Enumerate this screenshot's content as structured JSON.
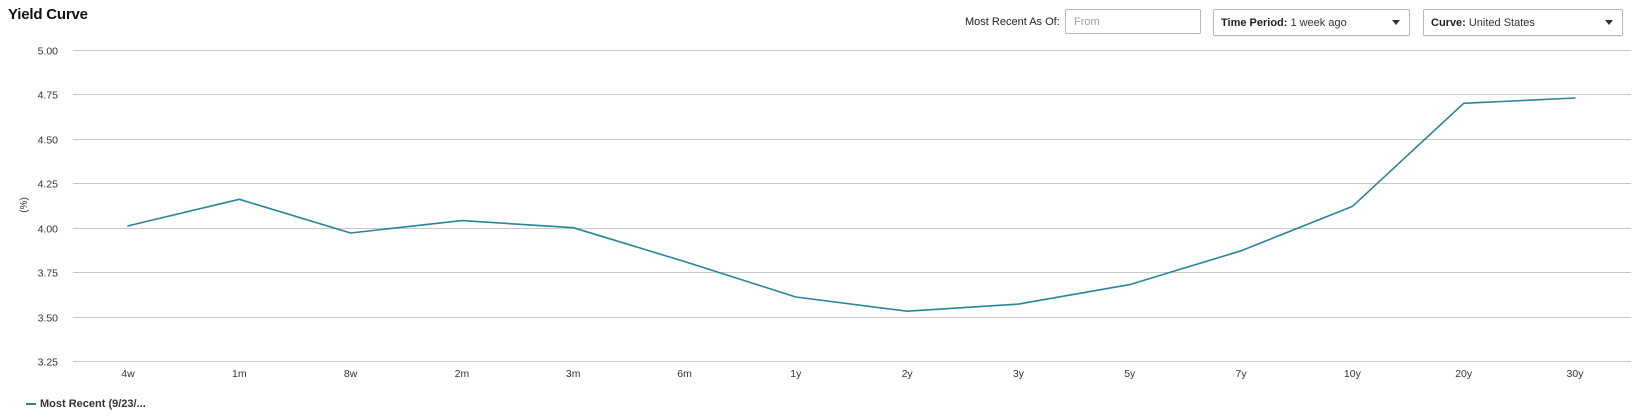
{
  "page": {
    "title": "Yield Curve"
  },
  "controls": {
    "as_of_label": "Most Recent As Of:",
    "as_of_placeholder": "From",
    "as_of_value": "",
    "time_period": {
      "label": "Time Period:",
      "value": "1 week ago"
    },
    "curve": {
      "label": "Curve:",
      "value": "United States"
    }
  },
  "chart_data": {
    "type": "line",
    "title": "",
    "xlabel": "",
    "ylabel": "(%)",
    "categories": [
      "4w",
      "1m",
      "8w",
      "2m",
      "3m",
      "6m",
      "1y",
      "2y",
      "3y",
      "5y",
      "7y",
      "10y",
      "20y",
      "30y"
    ],
    "series": [
      {
        "name": "Most Recent (9/23/...",
        "color": "#2a8499",
        "values": [
          4.01,
          4.16,
          3.97,
          4.04,
          4.0,
          3.81,
          3.61,
          3.53,
          3.57,
          3.68,
          3.87,
          4.12,
          4.7,
          4.73
        ]
      }
    ],
    "ylim": [
      3.25,
      5.0
    ],
    "yticks": [
      "5.00",
      "4.75",
      "4.50",
      "4.25",
      "4.00",
      "3.75",
      "3.50",
      "3.25"
    ],
    "grid": true,
    "legend": "bottom-left",
    "colors": {
      "grid": "#c8c8c8",
      "axis_text": "#333333"
    }
  }
}
